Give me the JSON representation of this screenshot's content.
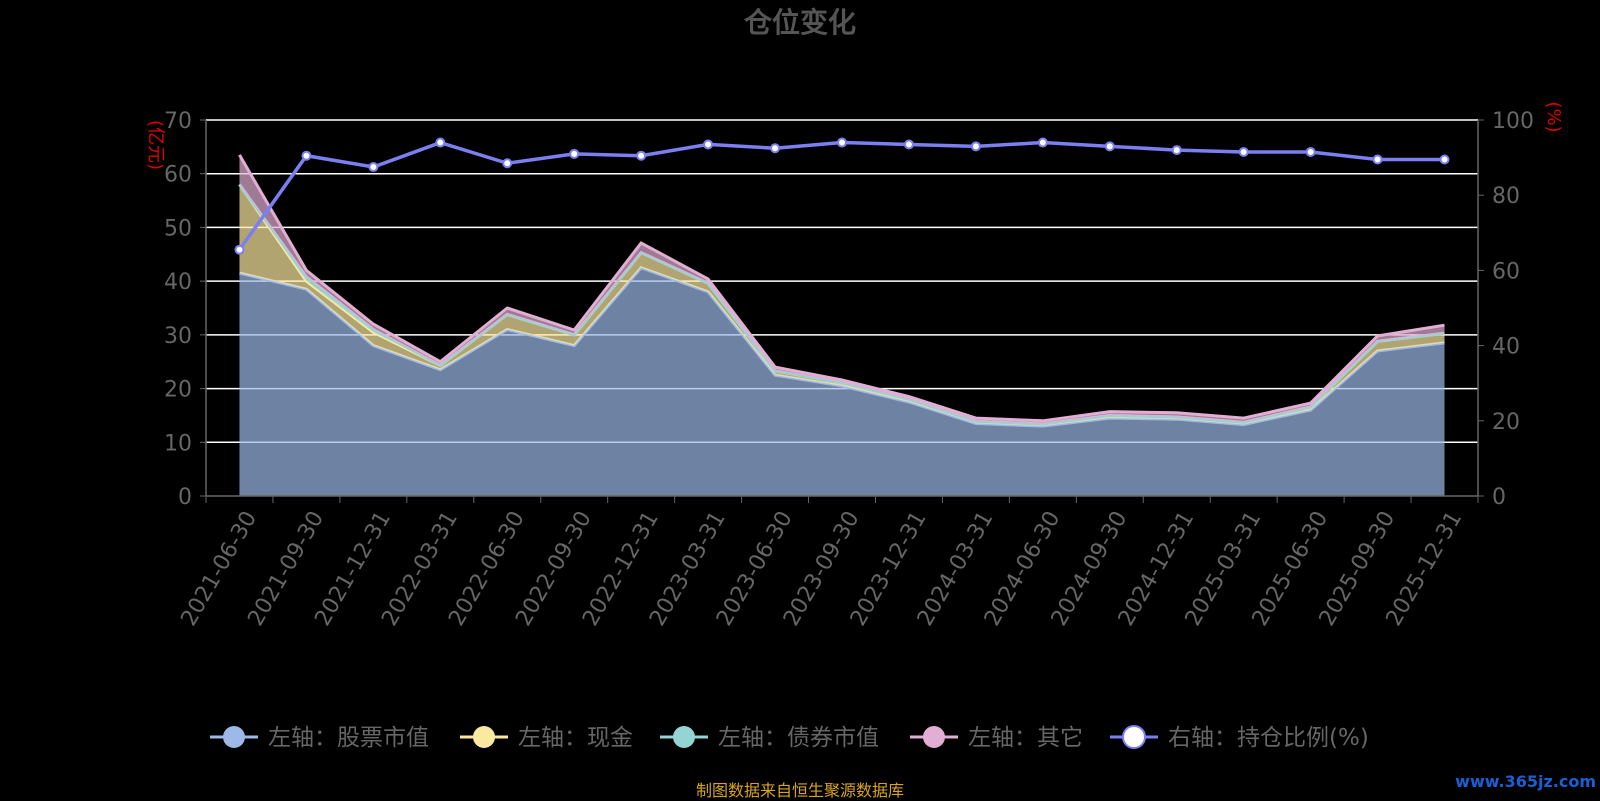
{
  "footer": {
    "source": "制图数据来自恒生聚源数据库",
    "watermark": "www.365jz.com"
  },
  "chart_data": {
    "type": "area",
    "title": "仓位变化",
    "left_axis_unit": "(亿元)",
    "right_axis_unit": "(%)",
    "ylim_left": [
      0,
      70
    ],
    "ylim_right": [
      0,
      100
    ],
    "left_ticks": [
      0,
      10,
      20,
      30,
      40,
      50,
      60,
      70
    ],
    "right_ticks": [
      0,
      20,
      40,
      60,
      80,
      100
    ],
    "grid": true,
    "legend_position": "bottom",
    "categories": [
      "2021-06-30",
      "2021-09-30",
      "2021-12-31",
      "2022-03-31",
      "2022-06-30",
      "2022-09-30",
      "2022-12-31",
      "2023-03-31",
      "2023-06-30",
      "2023-09-30",
      "2023-12-31",
      "2024-03-31",
      "2024-06-30",
      "2024-09-30",
      "2024-12-31",
      "2025-03-31",
      "2025-06-30",
      "2025-09-30",
      "2025-12-31"
    ],
    "series": [
      {
        "name": "左轴：股票市值",
        "axis": "left",
        "stacked": true,
        "color": "#9db9e8",
        "values": [
          41.5,
          38.5,
          28,
          23.5,
          31,
          28,
          42.5,
          38,
          22.5,
          20.5,
          17.5,
          13.5,
          13,
          14.5,
          14.3,
          13.3,
          16,
          27,
          28.5
        ]
      },
      {
        "name": "左轴：现金",
        "axis": "left",
        "stacked": true,
        "color": "#fce9a0",
        "values": [
          16.5,
          1.5,
          2.5,
          0.8,
          2.8,
          2.0,
          2.8,
          1.6,
          0.8,
          0.6,
          0.5,
          0.4,
          0.4,
          0.5,
          0.4,
          0.4,
          0.6,
          1.8,
          1.8
        ]
      },
      {
        "name": "左轴：债券市值",
        "axis": "left",
        "stacked": true,
        "color": "#94d5d3",
        "values": [
          0,
          0.8,
          0.5,
          0,
          0,
          0,
          0,
          0,
          0,
          0,
          0,
          0,
          0,
          0,
          0,
          0,
          0,
          0,
          0
        ]
      },
      {
        "name": "左轴：其它",
        "axis": "left",
        "stacked": true,
        "color": "#e2aed3",
        "values": [
          5.5,
          1.2,
          1.0,
          0.7,
          1.2,
          0.9,
          1.8,
          0.8,
          0.7,
          0.5,
          0.5,
          0.6,
          0.6,
          0.7,
          0.8,
          0.8,
          0.7,
          1.0,
          1.5
        ]
      },
      {
        "name": "右轴：持仓比例(%)",
        "axis": "right",
        "type": "line",
        "color": "#7b7ff2",
        "values": [
          65.5,
          90.5,
          87.5,
          94,
          88.5,
          91,
          90.5,
          93.5,
          92.5,
          94,
          93.5,
          93,
          94,
          93,
          92,
          91.5,
          91.5,
          89.5,
          89.5
        ]
      }
    ]
  },
  "colors": {
    "axis_text": "#666666",
    "unit_text": "#e00000",
    "grid": "#ffffff",
    "title": "#555555"
  }
}
